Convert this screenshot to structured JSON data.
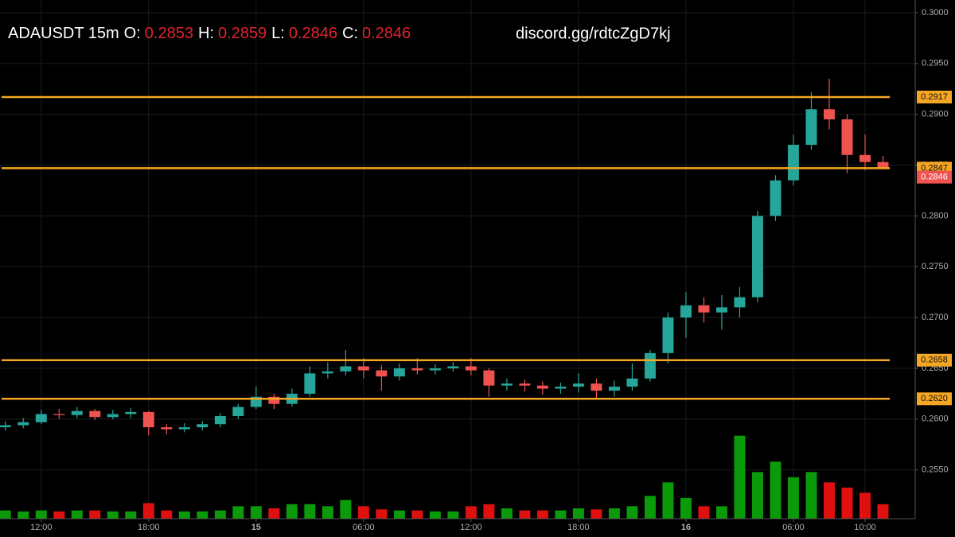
{
  "chart_data": {
    "type": "candlestick",
    "title": "ADAUSDT 15m",
    "header_fields": [
      {
        "label": "O:",
        "value": 0.2853
      },
      {
        "label": "H:",
        "value": 0.2859
      },
      {
        "label": "L:",
        "value": 0.2846
      },
      {
        "label": "C:",
        "value": 0.2846
      }
    ],
    "watermark": "discord.gg/rdtcZgD7kj",
    "up_color": "#26a69a",
    "down_color": "#ef5350",
    "volume_up_color": "#0a9a0a",
    "volume_down_color": "#e01010",
    "header_value_color": "#e0232e",
    "x": [
      10,
      11,
      12,
      13,
      14,
      15,
      16,
      17,
      18,
      19,
      20,
      21,
      22,
      23,
      24,
      25,
      26,
      27,
      28,
      29,
      30,
      31,
      32,
      33,
      34,
      35,
      36,
      37,
      38,
      39,
      40,
      41,
      42,
      43,
      44,
      45,
      46,
      47,
      48,
      49,
      50,
      51,
      52,
      53,
      54,
      55,
      56,
      57,
      58,
      59
    ],
    "open": [
      0.2592,
      0.2594,
      0.2597,
      0.2605,
      0.2604,
      0.2608,
      0.2602,
      0.2605,
      0.2607,
      0.2592,
      0.259,
      0.2592,
      0.2595,
      0.2603,
      0.2612,
      0.2622,
      0.2615,
      0.2625,
      0.2645,
      0.2647,
      0.2652,
      0.2648,
      0.2642,
      0.265,
      0.2648,
      0.265,
      0.2652,
      0.2648,
      0.2633,
      0.2635,
      0.2633,
      0.263,
      0.2632,
      0.2635,
      0.2628,
      0.2632,
      0.264,
      0.2665,
      0.27,
      0.2712,
      0.2705,
      0.271,
      0.272,
      0.28,
      0.2835,
      0.287,
      0.2905,
      0.2895,
      0.286,
      0.2853
    ],
    "high": [
      0.2598,
      0.2601,
      0.2609,
      0.261,
      0.2612,
      0.261,
      0.2609,
      0.2611,
      0.2608,
      0.2595,
      0.2596,
      0.2598,
      0.2606,
      0.2615,
      0.2632,
      0.2625,
      0.263,
      0.2652,
      0.2656,
      0.2668,
      0.266,
      0.2653,
      0.2655,
      0.266,
      0.2654,
      0.2656,
      0.266,
      0.265,
      0.264,
      0.2639,
      0.2637,
      0.2636,
      0.2645,
      0.264,
      0.2638,
      0.2655,
      0.2668,
      0.2705,
      0.2725,
      0.272,
      0.2722,
      0.273,
      0.2805,
      0.284,
      0.288,
      0.2922,
      0.2935,
      0.29,
      0.288,
      0.2859
    ],
    "low": [
      0.2589,
      0.2591,
      0.2595,
      0.26,
      0.2601,
      0.2599,
      0.26,
      0.2601,
      0.2584,
      0.2585,
      0.2587,
      0.2589,
      0.2592,
      0.26,
      0.261,
      0.261,
      0.2612,
      0.2622,
      0.264,
      0.2643,
      0.264,
      0.2628,
      0.2638,
      0.2644,
      0.2644,
      0.2647,
      0.2643,
      0.2622,
      0.2628,
      0.2627,
      0.2624,
      0.2625,
      0.2626,
      0.2619,
      0.2622,
      0.2628,
      0.2637,
      0.2655,
      0.268,
      0.2695,
      0.2688,
      0.27,
      0.2715,
      0.2795,
      0.283,
      0.2865,
      0.2885,
      0.2842,
      0.2845,
      0.2846
    ],
    "close": [
      0.2594,
      0.2597,
      0.2605,
      0.2604,
      0.2608,
      0.2602,
      0.2605,
      0.2607,
      0.2592,
      0.259,
      0.2592,
      0.2595,
      0.2603,
      0.2612,
      0.2622,
      0.2615,
      0.2625,
      0.2645,
      0.2647,
      0.2652,
      0.2648,
      0.2642,
      0.265,
      0.2648,
      0.265,
      0.2652,
      0.2648,
      0.2633,
      0.2635,
      0.2633,
      0.263,
      0.2632,
      0.2635,
      0.2628,
      0.2632,
      0.264,
      0.2665,
      0.27,
      0.2712,
      0.2705,
      0.271,
      0.272,
      0.28,
      0.2835,
      0.287,
      0.2905,
      0.2895,
      0.286,
      0.2853,
      0.2846
    ],
    "volume": [
      8,
      7,
      8,
      7,
      8,
      8,
      7,
      7,
      15,
      8,
      7,
      7,
      8,
      12,
      12,
      10,
      14,
      14,
      12,
      18,
      12,
      9,
      8,
      8,
      7,
      7,
      12,
      14,
      10,
      8,
      8,
      8,
      10,
      9,
      10,
      12,
      22,
      35,
      20,
      12,
      12,
      80,
      45,
      55,
      40,
      45,
      35,
      30,
      25,
      14
    ],
    "y2lim": [
      0,
      500
    ],
    "xlim": [
      9.7,
      60.8
    ],
    "xticks": [
      {
        "value": 12,
        "label": "12:00"
      },
      {
        "value": 18,
        "label": "18:00"
      },
      {
        "value": 24,
        "label": "15"
      },
      {
        "value": 30,
        "label": "06:00"
      },
      {
        "value": 36,
        "label": "12:00"
      },
      {
        "value": 42,
        "label": "18:00"
      },
      {
        "value": 48,
        "label": "16"
      },
      {
        "value": 54,
        "label": "06:00"
      },
      {
        "value": 58,
        "label": "10:00"
      }
    ],
    "ylim": [
      0.2502,
      0.30125
    ],
    "yticks": [
      {
        "value": 0.3,
        "label": "0.3000"
      },
      {
        "value": 0.295,
        "label": "0.2950"
      },
      {
        "value": 0.29,
        "label": "0.2900"
      },
      {
        "value": 0.285,
        "label": "0.2850"
      },
      {
        "value": 0.28,
        "label": "0.2800"
      },
      {
        "value": 0.275,
        "label": "0.2750"
      },
      {
        "value": 0.27,
        "label": "0.2700"
      },
      {
        "value": 0.265,
        "label": "0.2650"
      },
      {
        "value": 0.26,
        "label": "0.2600"
      },
      {
        "value": 0.255,
        "label": "0.2550"
      }
    ],
    "grid": true,
    "levels": [
      {
        "value": 0.2917
      },
      {
        "value": 0.2847
      },
      {
        "value": 0.2658
      },
      {
        "value": 0.262,
        "label": "0.2620"
      }
    ],
    "level_color": "#f5a623",
    "last_price": 0.2846
  }
}
